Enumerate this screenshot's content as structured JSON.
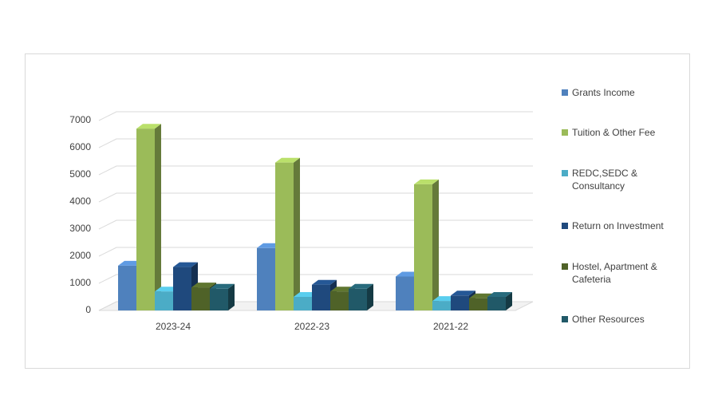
{
  "chart_data": {
    "type": "bar3d",
    "categories": [
      "2023-24",
      "2022-23",
      "2021-22"
    ],
    "series": [
      {
        "name": "Grants Income",
        "color": "#4f81bd",
        "values": [
          1650,
          2300,
          1250
        ]
      },
      {
        "name": "Tuition & Other Fee",
        "color": "#9bbb59",
        "values": [
          6700,
          5450,
          4650
        ]
      },
      {
        "name": "REDC,SEDC & Consultancy",
        "color": "#4bacc6",
        "values": [
          700,
          500,
          350
        ]
      },
      {
        "name": "Return on Investment",
        "color": "#1f497d",
        "values": [
          1600,
          950,
          550
        ]
      },
      {
        "name": "Hostel, Apartment & Cafeteria",
        "color": "#4f6228",
        "values": [
          850,
          700,
          450
        ]
      },
      {
        "name": "Other Resources",
        "color": "#215968",
        "values": [
          800,
          800,
          500
        ]
      }
    ],
    "ylim": [
      0,
      7000
    ],
    "yticks": [
      0,
      1000,
      2000,
      3000,
      4000,
      5000,
      6000,
      7000
    ],
    "grid": true
  }
}
